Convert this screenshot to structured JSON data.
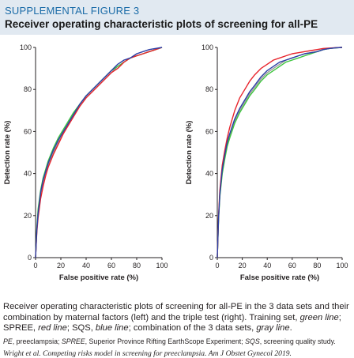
{
  "header": {
    "label": "SUPPLEMENTAL FIGURE 3",
    "title": "Receiver operating characteristic plots of screening for all-PE"
  },
  "colors": {
    "header_bg": "#e1e9f1",
    "label": "#1b6ca8",
    "training_set": "#3ec63e",
    "spree": "#e8242c",
    "sqs": "#2b3ea6",
    "combination": "#9a9a9a"
  },
  "chart_data": [
    {
      "type": "line",
      "panel": "left",
      "xlabel": "False positive rate (%)",
      "ylabel": "Detection rate (%)",
      "xlim": [
        0,
        100
      ],
      "ylim": [
        0,
        100
      ],
      "xticks": [
        0,
        20,
        40,
        60,
        80,
        100
      ],
      "yticks": [
        0,
        20,
        40,
        60,
        80,
        100
      ],
      "grid": false,
      "series": [
        {
          "color": "green",
          "x": [
            0,
            1,
            2,
            4,
            6,
            8,
            10,
            14,
            18,
            22,
            26,
            30,
            35,
            40,
            45,
            50,
            55,
            60,
            65,
            70,
            75,
            80,
            85,
            90,
            95,
            100
          ],
          "y": [
            0,
            14,
            23,
            32,
            38,
            42,
            46,
            52,
            57,
            61,
            65,
            69,
            73,
            77,
            80,
            83,
            86,
            89,
            91,
            93,
            95,
            96,
            97,
            98,
            99,
            100
          ]
        },
        {
          "color": "red",
          "x": [
            0,
            1,
            2,
            4,
            6,
            8,
            10,
            14,
            18,
            22,
            26,
            30,
            35,
            40,
            45,
            50,
            55,
            60,
            65,
            70,
            75,
            80,
            85,
            90,
            95,
            100
          ],
          "y": [
            0,
            12,
            19,
            28,
            34,
            39,
            43,
            49,
            54,
            59,
            63,
            67,
            72,
            76,
            79,
            82,
            85,
            88,
            90,
            93,
            95,
            96,
            97,
            98,
            99,
            100
          ]
        },
        {
          "color": "blue",
          "x": [
            0,
            1,
            2,
            4,
            6,
            8,
            10,
            14,
            18,
            22,
            26,
            30,
            35,
            40,
            45,
            50,
            55,
            60,
            65,
            70,
            75,
            80,
            85,
            90,
            95,
            100
          ],
          "y": [
            0,
            13,
            21,
            31,
            37,
            41,
            45,
            51,
            56,
            60,
            64,
            68,
            73,
            77,
            80,
            83,
            86,
            89,
            92,
            94,
            95,
            97,
            98,
            99,
            99.5,
            100
          ]
        },
        {
          "color": "gray",
          "x": [
            0,
            1,
            2,
            4,
            6,
            8,
            10,
            14,
            18,
            22,
            26,
            30,
            35,
            40,
            45,
            50,
            55,
            60,
            65,
            70,
            75,
            80,
            85,
            90,
            95,
            100
          ],
          "y": [
            0,
            13,
            21,
            30,
            36,
            40,
            44,
            50,
            55,
            60,
            64,
            68,
            72,
            76,
            79,
            82,
            85,
            88,
            91,
            93,
            95,
            96,
            97,
            98,
            99,
            100
          ]
        }
      ]
    },
    {
      "type": "line",
      "panel": "right",
      "xlabel": "False positive rate (%)",
      "ylabel": "Detection rate (%)",
      "xlim": [
        0,
        100
      ],
      "ylim": [
        0,
        100
      ],
      "xticks": [
        0,
        20,
        40,
        60,
        80,
        100
      ],
      "yticks": [
        0,
        20,
        40,
        60,
        80,
        100
      ],
      "grid": false,
      "series": [
        {
          "color": "green",
          "x": [
            0,
            1,
            2,
            4,
            6,
            8,
            10,
            14,
            18,
            22,
            26,
            30,
            35,
            40,
            45,
            50,
            55,
            60,
            65,
            70,
            75,
            80,
            85,
            90,
            95,
            100
          ],
          "y": [
            0,
            18,
            29,
            40,
            47,
            53,
            57,
            64,
            69,
            73,
            77,
            80,
            84,
            87,
            89,
            91,
            93,
            94,
            95,
            96,
            97,
            98,
            99,
            99.5,
            99.8,
            100
          ]
        },
        {
          "color": "red",
          "x": [
            0,
            1,
            2,
            4,
            6,
            8,
            10,
            14,
            18,
            22,
            26,
            30,
            35,
            40,
            45,
            50,
            55,
            60,
            65,
            70,
            75,
            80,
            85,
            90,
            95,
            100
          ],
          "y": [
            0,
            20,
            32,
            44,
            51,
            57,
            62,
            70,
            76,
            80,
            84,
            87,
            90,
            92,
            94,
            95,
            96,
            97,
            97.5,
            98,
            98.5,
            99,
            99.5,
            99.7,
            99.9,
            100
          ]
        },
        {
          "color": "blue",
          "x": [
            0,
            1,
            2,
            4,
            6,
            8,
            10,
            14,
            18,
            22,
            26,
            30,
            35,
            40,
            45,
            50,
            55,
            60,
            65,
            70,
            75,
            80,
            85,
            90,
            95,
            100
          ],
          "y": [
            0,
            19,
            30,
            42,
            49,
            55,
            59,
            66,
            71,
            75,
            79,
            82,
            86,
            89,
            91,
            93,
            94,
            95,
            96,
            97,
            97.5,
            98,
            99,
            99.5,
            99.8,
            100
          ]
        },
        {
          "color": "gray",
          "x": [
            0,
            1,
            2,
            4,
            6,
            8,
            10,
            14,
            18,
            22,
            26,
            30,
            35,
            40,
            45,
            50,
            55,
            60,
            65,
            70,
            75,
            80,
            85,
            90,
            95,
            100
          ],
          "y": [
            0,
            19,
            30,
            41,
            48,
            54,
            58,
            65,
            70,
            74,
            78,
            81,
            85,
            88,
            90,
            92,
            94,
            95,
            96,
            97,
            97.5,
            98,
            99,
            99.5,
            99.8,
            100
          ]
        }
      ]
    }
  ],
  "caption": {
    "main_1": "Receiver operating characteristic plots of screening for all-PE in the 3 data sets and their combination by maternal factors (left) and the triple test (right). Training set, ",
    "training_label": "green line",
    "main_2": "; SPREE, ",
    "spree_label": "red line",
    "main_3": "; SQS, ",
    "sqs_label": "blue line",
    "main_4": "; combination of the 3 data sets, ",
    "comb_label": "gray line",
    "main_5": ".",
    "abbrev_pe": "PE",
    "abbrev_pe_text": ", preeclampsia; ",
    "abbrev_spree": "SPREE",
    "abbrev_spree_text": ", Superior Province Rifting EarthScope Experiment; ",
    "abbrev_sqs": "SQS",
    "abbrev_sqs_text": ", screening quality study.",
    "citation": "Wright et al. Competing risks model in screening for preeclampsia. Am J Obstet Gynecol 2019."
  }
}
